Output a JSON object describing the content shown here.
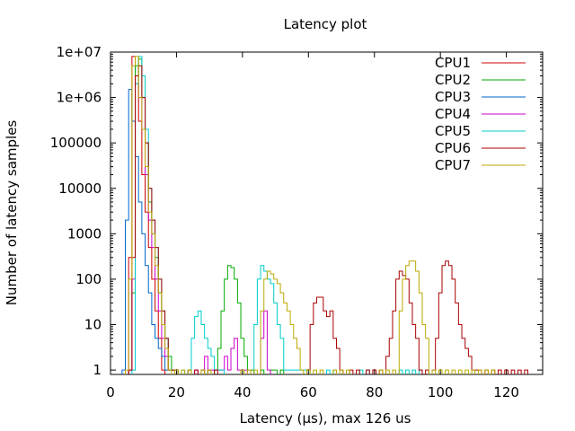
{
  "chart_data": {
    "type": "line",
    "title": "Latency plot",
    "xlabel": "Latency (µs), max 126 us",
    "ylabel": "Number of latency samples",
    "xlim": [
      0,
      131
    ],
    "ylim": [
      0.8,
      10000000
    ],
    "yscale": "log",
    "x_ticks": [
      0,
      20,
      40,
      60,
      80,
      100,
      120
    ],
    "y_ticks": [
      {
        "value": 1,
        "label": "1"
      },
      {
        "value": 10,
        "label": "10"
      },
      {
        "value": 100,
        "label": "100"
      },
      {
        "value": 1000,
        "label": "1000"
      },
      {
        "value": 10000,
        "label": "10000"
      },
      {
        "value": 100000,
        "label": "100000"
      },
      {
        "value": 1000000,
        "label": "1e+06"
      },
      {
        "value": 10000000,
        "label": "1e+07"
      }
    ],
    "grid": false,
    "legend_position": "top-right",
    "series": [
      {
        "name": "CPU1",
        "color": "#cc0000",
        "step": "mid",
        "x": [
          6,
          7,
          8,
          9,
          10,
          11,
          12,
          13,
          14,
          15,
          16
        ],
        "y": [
          300,
          8000000,
          2000000,
          300000,
          20000,
          3000,
          500,
          100,
          20,
          5,
          1
        ]
      },
      {
        "name": "CPU2",
        "color": "#00aa00",
        "step": "mid",
        "x": [
          6,
          7,
          8,
          9,
          10,
          11,
          12,
          13,
          14,
          15,
          16,
          17,
          18,
          19,
          20,
          28,
          30,
          32,
          33,
          34,
          35,
          36,
          37,
          38,
          39,
          40,
          41,
          42,
          43,
          46,
          49,
          50,
          52
        ],
        "y": [
          1,
          50,
          5000000,
          7000000,
          1000000,
          100000,
          5000,
          1000,
          300,
          50,
          10,
          5,
          2,
          1,
          1,
          1,
          1,
          1,
          3,
          20,
          100,
          200,
          180,
          100,
          30,
          5,
          2,
          1,
          1,
          1,
          1,
          1,
          1
        ]
      },
      {
        "name": "CPU3",
        "color": "#0066cc",
        "step": "mid",
        "x": [
          4,
          5,
          6,
          7,
          8,
          9,
          10,
          11,
          12,
          13,
          14,
          15,
          16,
          17,
          18,
          19,
          20
        ],
        "y": [
          1,
          2000,
          1500000,
          300000,
          50000,
          5000,
          1000,
          200,
          50,
          10,
          5,
          3,
          2,
          1,
          1,
          1,
          1
        ]
      },
      {
        "name": "CPU4",
        "color": "#cc00cc",
        "step": "mid",
        "x": [
          6,
          7,
          8,
          9,
          10,
          11,
          12,
          13,
          14,
          15,
          16,
          17,
          18,
          19,
          20,
          26,
          28,
          29,
          30,
          31,
          32,
          33,
          34,
          35,
          36,
          37,
          38,
          39,
          40,
          41,
          46,
          47,
          48
        ],
        "y": [
          1,
          100,
          3000000,
          1000000,
          200000,
          20000,
          2000,
          500,
          100,
          20,
          5,
          2,
          1,
          1,
          1,
          1,
          1,
          2,
          1,
          1,
          1,
          1,
          1,
          2,
          1,
          3,
          5,
          1,
          1,
          1,
          5,
          20,
          1
        ]
      },
      {
        "name": "CPU5",
        "color": "#00cccc",
        "step": "mid",
        "x": [
          7,
          8,
          9,
          10,
          11,
          12,
          13,
          14,
          15,
          16,
          17,
          18,
          19,
          20,
          22,
          24,
          25,
          26,
          27,
          28,
          29,
          30,
          31,
          32,
          33,
          34,
          44,
          45,
          46,
          47,
          48,
          49,
          50,
          51,
          52,
          53,
          54,
          55,
          56,
          57,
          58,
          59,
          60,
          66,
          68,
          76,
          78,
          88,
          90,
          92,
          94
        ],
        "y": [
          1,
          2000000,
          8000000,
          3000000,
          200000,
          10000,
          2000,
          500,
          100,
          20,
          5,
          1,
          1,
          1,
          1,
          1,
          5,
          15,
          20,
          10,
          5,
          3,
          2,
          1,
          1,
          1,
          10,
          100,
          200,
          150,
          100,
          80,
          30,
          10,
          5,
          1,
          1,
          1,
          1,
          1,
          1,
          1,
          1,
          1,
          1,
          1,
          1,
          1,
          1,
          1,
          1
        ]
      },
      {
        "name": "CPU6",
        "color": "#aa0000",
        "step": "mid",
        "x": [
          6,
          7,
          8,
          9,
          10,
          11,
          12,
          13,
          14,
          15,
          16,
          17,
          18,
          19,
          20,
          24,
          26,
          28,
          30,
          32,
          60,
          61,
          62,
          63,
          64,
          65,
          66,
          67,
          68,
          69,
          70,
          73,
          75,
          78,
          80,
          82,
          84,
          85,
          86,
          87,
          88,
          89,
          90,
          91,
          92,
          93,
          94,
          96,
          98,
          99,
          100,
          101,
          102,
          103,
          104,
          105,
          106,
          107,
          108,
          109,
          110,
          111,
          112,
          114,
          116,
          118,
          120,
          122,
          124,
          126
        ],
        "y": [
          1,
          300,
          3000000,
          5000000,
          1000000,
          100000,
          10000,
          2000,
          500,
          100,
          20,
          5,
          1,
          1,
          1,
          1,
          1,
          1,
          1,
          1,
          1,
          10,
          30,
          40,
          40,
          20,
          15,
          20,
          5,
          3,
          1,
          1,
          1,
          1,
          1,
          1,
          2,
          5,
          20,
          100,
          150,
          120,
          100,
          30,
          10,
          5,
          1,
          1,
          1,
          5,
          50,
          200,
          250,
          200,
          100,
          30,
          10,
          5,
          3,
          2,
          1,
          1,
          1,
          1,
          1,
          1,
          1,
          1,
          1,
          1
        ]
      },
      {
        "name": "CPU7",
        "color": "#bbaa00",
        "step": "mid",
        "x": [
          5,
          6,
          7,
          8,
          9,
          10,
          11,
          12,
          13,
          14,
          15,
          16,
          17,
          18,
          20,
          22,
          24,
          28,
          30,
          40,
          42,
          44,
          46,
          47,
          48,
          49,
          50,
          51,
          52,
          53,
          54,
          55,
          56,
          57,
          58,
          60,
          62,
          64,
          68,
          70,
          72,
          82,
          84,
          86,
          88,
          89,
          90,
          91,
          92,
          93,
          94,
          95,
          96,
          98,
          100,
          102,
          104,
          106,
          108,
          110,
          112,
          114,
          116
        ],
        "y": [
          1,
          100,
          5000000,
          8000000,
          1000000,
          200000,
          30000,
          3000,
          1000,
          200,
          50,
          10,
          3,
          1,
          1,
          1,
          1,
          1,
          1,
          1,
          1,
          1,
          20,
          100,
          150,
          130,
          100,
          80,
          50,
          30,
          20,
          10,
          5,
          3,
          1,
          1,
          1,
          1,
          1,
          1,
          1,
          1,
          1,
          1,
          20,
          100,
          200,
          250,
          250,
          150,
          50,
          10,
          5,
          1,
          1,
          1,
          1,
          1,
          1,
          1,
          1,
          1,
          1
        ]
      }
    ]
  }
}
